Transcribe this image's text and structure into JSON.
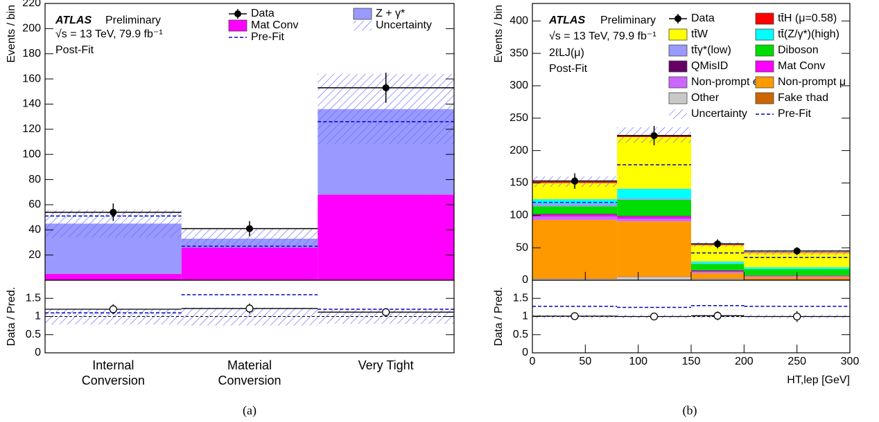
{
  "chart_data": [
    {
      "type": "histogram",
      "caption": "(a)",
      "atlas": "ATLAS",
      "preliminary": "Preliminary",
      "energy": "√s = 13 TeV, 79.9 fb⁻¹",
      "fit_label": "Post-Fit",
      "ylabel": "Events / bin",
      "ratio_ylabel": "Data / Pred.",
      "categories": [
        "Internal Conversion",
        "Material Conversion",
        "Very Tight"
      ],
      "ylim": [
        0,
        220
      ],
      "yticks": [
        20,
        40,
        60,
        80,
        100,
        120,
        140,
        160,
        180,
        200,
        220
      ],
      "ratio_ylim": [
        0,
        2
      ],
      "ratio_yticks": [
        0,
        0.5,
        1,
        1.5
      ],
      "ratio_reference": 1,
      "series": [
        {
          "name": "Mat Conv",
          "color": "#ff00ff",
          "values": [
            5,
            26,
            68
          ]
        },
        {
          "name": "Z + γ*",
          "color": "#9999ff",
          "values": [
            40,
            7,
            68
          ]
        }
      ],
      "data": {
        "name": "Data",
        "values": [
          54,
          41,
          153
        ],
        "errors": [
          7,
          6,
          12
        ]
      },
      "prefit": {
        "name": "Pre-Fit",
        "color": "#0000cc",
        "values": [
          51,
          27,
          126
        ]
      },
      "uncertainty": {
        "name": "Uncertainty",
        "color": "#6666ff",
        "values": [
          11,
          8,
          28
        ]
      },
      "ratio": {
        "data": {
          "values": [
            1.2,
            1.22,
            1.12
          ],
          "errors": [
            0.14,
            0.14,
            0.05
          ]
        },
        "prefit": {
          "values": [
            1.1,
            1.6,
            1.2
          ]
        },
        "uncertainty": {
          "values": [
            0.22,
            0.25,
            0.2
          ]
        }
      }
    },
    {
      "type": "histogram",
      "caption": "(b)",
      "atlas": "ATLAS",
      "preliminary": "Preliminary",
      "energy": "√s = 13 TeV, 79.9 fb⁻¹",
      "channel": "2ℓLJ(μ)",
      "fit_label": "Post-Fit",
      "ylabel": "Events / bin",
      "ratio_ylabel": "Data / Pred.",
      "xlabel": "HT,lep [GeV]",
      "bins": [
        0,
        80,
        150,
        200,
        300
      ],
      "xlim": [
        0,
        300
      ],
      "xticks": [
        0,
        50,
        100,
        150,
        200,
        250,
        300
      ],
      "ylim": [
        0,
        427
      ],
      "yticks": [
        0,
        50,
        100,
        150,
        200,
        250,
        300,
        350,
        400
      ],
      "ratio_ylim": [
        0,
        2
      ],
      "ratio_yticks": [
        0,
        0.5,
        1,
        1.5
      ],
      "ratio_reference": 1,
      "series": [
        {
          "name": "Other",
          "color": "#c8c8c8",
          "values": [
            2,
            5,
            2,
            1
          ]
        },
        {
          "name": "Fake τhad",
          "color": "#cc6600",
          "values": [
            1,
            1,
            1,
            1
          ]
        },
        {
          "name": "Non-prompt μ",
          "color": "#ff9900",
          "values": [
            90,
            85,
            8,
            3
          ]
        },
        {
          "name": "Non-prompt e",
          "color": "#cc66ff",
          "values": [
            5,
            4,
            2,
            1
          ]
        },
        {
          "name": "Mat Conv",
          "color": "#ff00ff",
          "values": [
            3,
            3,
            1,
            1
          ]
        },
        {
          "name": "QMisID",
          "color": "#660066",
          "values": [
            1,
            1,
            1,
            0
          ]
        },
        {
          "name": "Diboson",
          "color": "#00dd00",
          "values": [
            12,
            25,
            10,
            10
          ]
        },
        {
          "name": "tt̄γ*(low)",
          "color": "#9999ff",
          "values": [
            4,
            2,
            1,
            0
          ]
        },
        {
          "name": "tt̄(Z/γ*)(high)",
          "color": "#00ffff",
          "values": [
            7,
            15,
            3,
            3
          ]
        },
        {
          "name": "tt̄W",
          "color": "#ffff00",
          "values": [
            25,
            80,
            25,
            22
          ]
        },
        {
          "name": "tt̄H (μ=0.58)",
          "color": "#ff0000",
          "values": [
            2,
            3,
            1,
            1
          ]
        }
      ],
      "data": {
        "name": "Data",
        "values": [
          153,
          223,
          56,
          45
        ],
        "errors": [
          12,
          15,
          7,
          6
        ]
      },
      "prefit": {
        "name": "Pre-Fit",
        "color": "#0000cc",
        "values": [
          120,
          178,
          42,
          35
        ]
      },
      "uncertainty": {
        "name": "Uncertainty",
        "color": "#6666ff",
        "values": [
          8,
          12,
          4,
          4
        ]
      },
      "ratio": {
        "data": {
          "values": [
            1.01,
            1.0,
            1.02,
            1.0
          ],
          "errors": [
            0.08,
            0.07,
            0.12,
            0.15
          ]
        },
        "prefit": {
          "values": [
            1.28,
            1.25,
            1.3,
            1.28
          ]
        },
        "uncertainty": {
          "values": [
            0.05,
            0.05,
            0.05,
            0.05
          ]
        }
      }
    }
  ]
}
